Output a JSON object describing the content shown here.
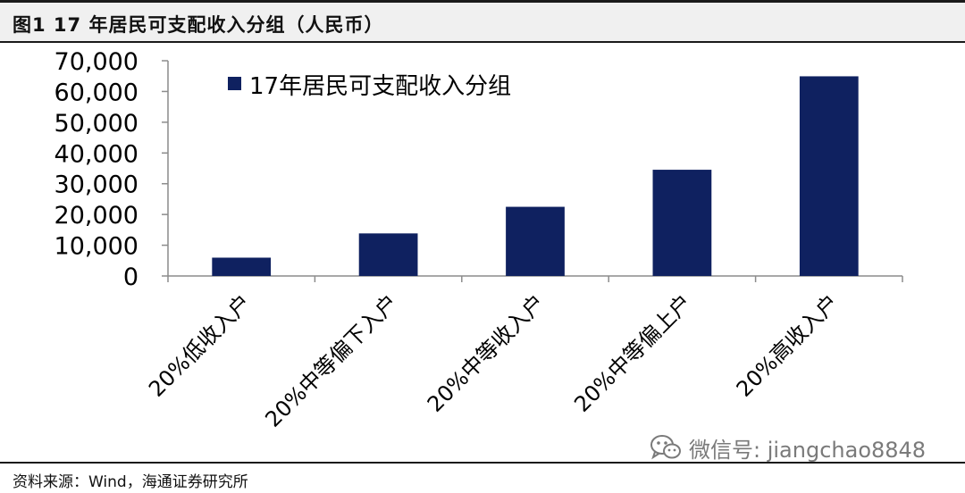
{
  "figure_title": "图1   17 年居民可支配收入分组（人民币）",
  "source_note": "资料来源：Wind，海通证券研究所",
  "watermark": {
    "icon": "wechat-icon",
    "text": "微信号: jiangchao8848",
    "color": "#7a7a7a"
  },
  "chart_data": {
    "type": "bar",
    "title": "",
    "categories": [
      "20%低收入户",
      "20%中等偏下入户",
      "20%中等收入户",
      "20%中等偏上户",
      "20%高收入户"
    ],
    "series": [
      {
        "name": "17年居民可支配收入分组",
        "values": [
          5958,
          13843,
          22495,
          34547,
          64934
        ],
        "color": "#0f2160"
      }
    ],
    "yticks": [
      "0",
      "10,000",
      "20,000",
      "30,000",
      "40,000",
      "50,000",
      "60,000",
      "70,000"
    ],
    "ylim": [
      0,
      70000
    ],
    "xlabel": "",
    "ylabel": "",
    "legend_position": "top-left",
    "grid": false
  }
}
